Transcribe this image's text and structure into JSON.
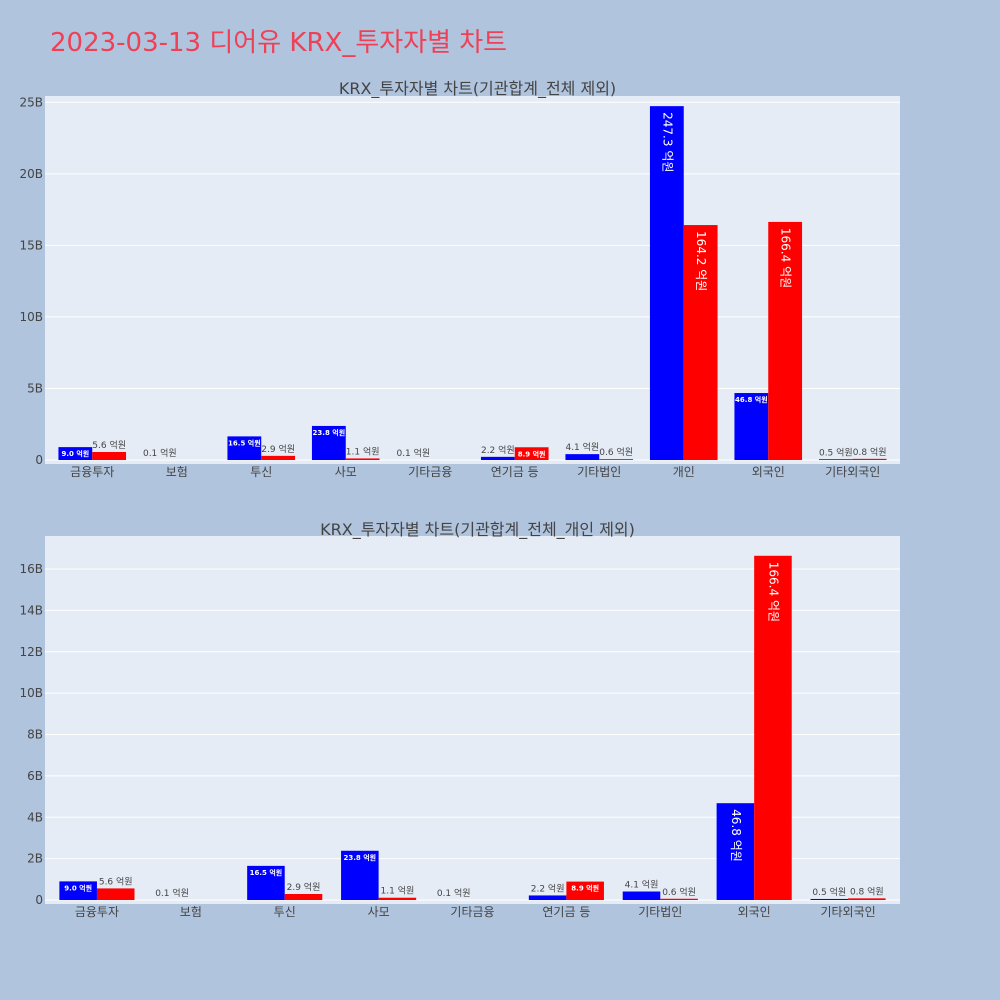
{
  "page": {
    "title": "2023-03-13 디어유 KRX_투자자별 차트"
  },
  "colors": {
    "background": "#b0c4de",
    "plot_bg": "#e5ecf6",
    "title": "#ef4056",
    "series_1": "#0000ff",
    "series_2": "#ff0000"
  },
  "chart_data": [
    {
      "type": "bar",
      "title": "KRX_투자자별 차트(기관합계_전체 제외)",
      "categories": [
        "금융투자",
        "보험",
        "투신",
        "사모",
        "기타금융",
        "연기금 등",
        "기타법인",
        "개인",
        "외국인",
        "기타외국인"
      ],
      "series": [
        {
          "color": "#0000ff",
          "values": [
            0.9,
            0.01,
            1.65,
            2.38,
            0.01,
            0.22,
            0.41,
            24.73,
            4.68,
            0.05
          ],
          "labels": [
            "9.0 억원",
            "0.1 억원",
            "16.5 억원",
            "23.8 억원",
            "0.1 억원",
            "2.2 억원",
            "4.1 억원",
            "247.3 억원",
            "46.8 억원",
            "0.5 억원"
          ]
        },
        {
          "color": "#ff0000",
          "values": [
            0.56,
            0,
            0.29,
            0.11,
            0,
            0.89,
            0.06,
            16.42,
            16.64,
            0.08
          ],
          "labels": [
            "5.6 억원",
            "",
            "2.9 억원",
            "1.1 억원",
            "",
            "8.9 억원",
            "0.6 억원",
            "164.2 억원",
            "166.4 억원",
            "0.8 억원"
          ]
        }
      ],
      "ylim": [
        0,
        25.3
      ],
      "yticks": [
        0,
        5,
        10,
        15,
        20,
        25
      ],
      "ytick_labels": [
        "0",
        "5B",
        "10B",
        "15B",
        "20B",
        "25B"
      ],
      "grid": true,
      "legend": "none"
    },
    {
      "type": "bar",
      "title": "KRX_투자자별 차트(기관합계_전체_개인 제외)",
      "categories": [
        "금융투자",
        "보험",
        "투신",
        "사모",
        "기타금융",
        "연기금 등",
        "기타법인",
        "외국인",
        "기타외국인"
      ],
      "series": [
        {
          "color": "#0000ff",
          "values": [
            0.9,
            0.01,
            1.65,
            2.38,
            0.01,
            0.22,
            0.41,
            4.68,
            0.05
          ],
          "labels": [
            "9.0 억원",
            "0.1 억원",
            "16.5 억원",
            "23.8 억원",
            "0.1 억원",
            "2.2 억원",
            "4.1 억원",
            "46.8 억원",
            "0.5 억원"
          ]
        },
        {
          "color": "#ff0000",
          "values": [
            0.56,
            0,
            0.29,
            0.11,
            0,
            0.89,
            0.06,
            16.64,
            0.08
          ],
          "labels": [
            "5.6 억원",
            "",
            "2.9 억원",
            "1.1 억원",
            "",
            "8.9 억원",
            "0.6 억원",
            "166.4 억원",
            "0.8 억원"
          ]
        }
      ],
      "ylim": [
        0,
        17.5
      ],
      "yticks": [
        0,
        2,
        4,
        6,
        8,
        10,
        12,
        14,
        16
      ],
      "ytick_labels": [
        "0",
        "2B",
        "4B",
        "6B",
        "8B",
        "10B",
        "12B",
        "14B",
        "16B"
      ],
      "grid": true,
      "legend": "none"
    }
  ]
}
